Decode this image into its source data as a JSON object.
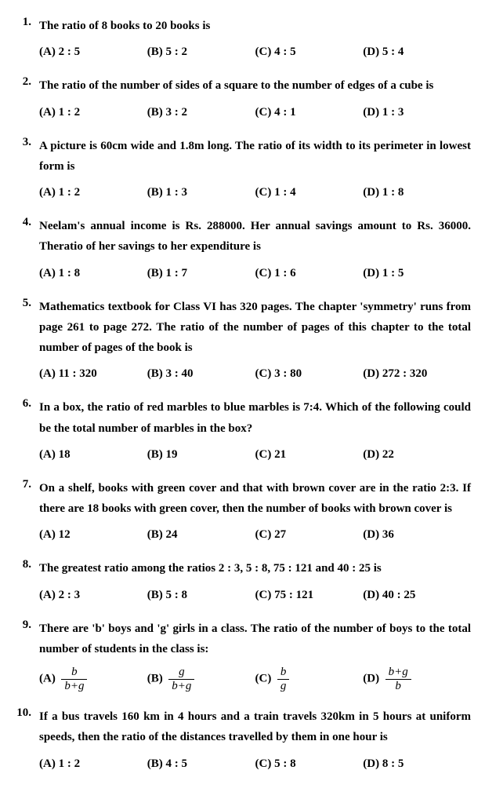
{
  "questions": [
    {
      "num": "1.",
      "text": "The ratio of 8 books to 20 books is",
      "opts": {
        "a": "(A)  2 : 5",
        "b": "(B)  5 : 2",
        "c": "(C)  4 : 5",
        "d": "(D)  5 : 4"
      }
    },
    {
      "num": "2.",
      "text": "The ratio of the number of sides of a square to the number of edges of a cube is",
      "opts": {
        "a": "(A)  1 : 2",
        "b": "(B)  3 : 2",
        "c": "(C)  4 : 1",
        "d": "(D)  1 : 3"
      }
    },
    {
      "num": "3.",
      "text": "A picture is 60cm wide and 1.8m long. The ratio of its width to its perimeter in lowest form is",
      "opts": {
        "a": "(A)  1 : 2",
        "b": "(B)  1 : 3",
        "c": "(C)  1 : 4",
        "d": "(D)  1 : 8"
      }
    },
    {
      "num": "4.",
      "text": "Neelam's annual income is Rs. 288000. Her annual savings amount to Rs. 36000. Theratio of her savings to her expenditure is",
      "opts": {
        "a": "(A)  1 : 8",
        "b": "(B)  1 : 7",
        "c": "(C)  1 : 6",
        "d": "(D)  1 : 5"
      }
    },
    {
      "num": "5.",
      "text": "Mathematics textbook for Class VI has 320 pages. The chapter 'symmetry' runs from page 261 to page 272. The ratio of the number of pages of this chapter to the total number of pages of the book is",
      "opts": {
        "a": "(A)  11 : 320",
        "b": "(B)  3 : 40",
        "c": "(C)  3 : 80",
        "d": "(D)  272 : 320"
      }
    },
    {
      "num": "6.",
      "text": "In a box, the ratio of red marbles to blue marbles is 7:4. Which of the following could be the total number of marbles in the box?",
      "opts": {
        "a": "(A)  18",
        "b": "(B)  19",
        "c": "(C)  21",
        "d": "(D)  22"
      }
    },
    {
      "num": "7.",
      "text": "On a shelf, books with green cover and that with brown cover are in the ratio 2:3. If there are 18 books with green cover, then the number of books with brown cover is",
      "opts": {
        "a": "(A)  12",
        "b": "(B)  24",
        "c": "(C)  27",
        "d": "(D)  36"
      }
    },
    {
      "num": "8.",
      "text": "The greatest ratio among the ratios 2 : 3, 5 : 8, 75 : 121 and 40 : 25 is",
      "opts": {
        "a": "(A)  2 : 3",
        "b": "(B)  5 : 8",
        "c": "(C)  75 : 121",
        "d": "(D)  40 : 25"
      }
    },
    {
      "num": "9.",
      "text": "There are 'b' boys and 'g' girls in a class. The ratio of the number of boys to the total number of students in the class is:",
      "opts_frac": {
        "a": {
          "label": "(A)",
          "num": "b",
          "den": "b+g"
        },
        "b": {
          "label": "(B)",
          "num": "g",
          "den": "b+g"
        },
        "c": {
          "label": "(C)",
          "num": "b",
          "den": "g"
        },
        "d": {
          "label": "(D)",
          "num": "b+g",
          "den": "b"
        }
      }
    },
    {
      "num": "10.",
      "text": "If a bus travels 160 km in 4 hours and a train travels 320km in 5 hours at uniform speeds, then the ratio of the distances travelled by them in one hour is",
      "opts": {
        "a": "(A)  1 : 2",
        "b": "(B)  4 : 5",
        "c": "(C)  5 : 8",
        "d": "(D)  8 : 5"
      }
    }
  ]
}
